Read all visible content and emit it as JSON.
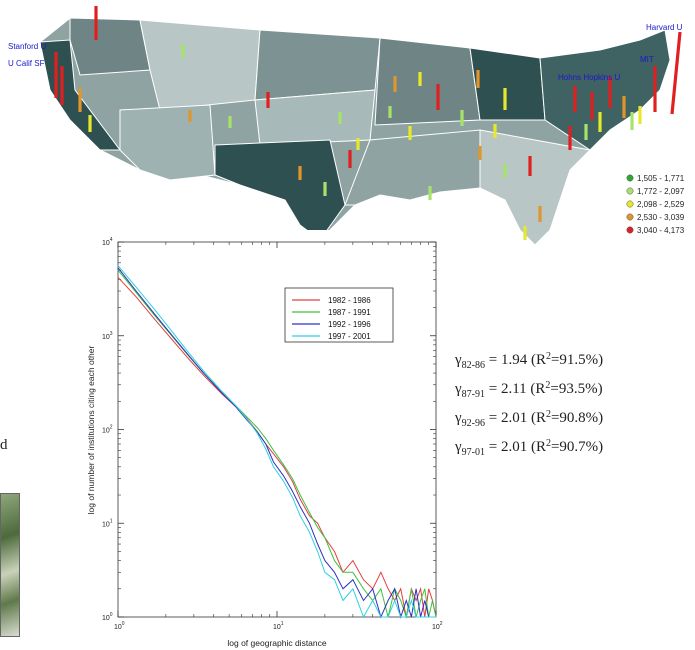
{
  "map": {
    "institution_labels": [
      "Stanford U",
      "U Calif SF",
      "Harvard U",
      "MIT",
      "Hohns Hopkins U"
    ],
    "legend": [
      {
        "label": "1,505 - 1,771",
        "color": "#2fa82f"
      },
      {
        "label": "1,772 - 2,097",
        "color": "#a6e36a"
      },
      {
        "label": "2,098 - 2,529",
        "color": "#e8e82a"
      },
      {
        "label": "2,530 - 3,039",
        "color": "#e0962a"
      },
      {
        "label": "3,040 - 4,173",
        "color": "#e02020"
      }
    ]
  },
  "chart_data": {
    "type": "line",
    "xlabel": "log of geographic distance",
    "ylabel": "log of number of institutions citing each other",
    "x_scale": "log",
    "y_scale": "log",
    "xlim": [
      1,
      100
    ],
    "ylim": [
      1,
      10000
    ],
    "x_ticks": [
      {
        "base": "10",
        "exp": "0"
      },
      {
        "base": "10",
        "exp": "1"
      },
      {
        "base": "10",
        "exp": "2"
      }
    ],
    "y_ticks": [
      {
        "base": "10",
        "exp": "0"
      },
      {
        "base": "10",
        "exp": "1"
      },
      {
        "base": "10",
        "exp": "2"
      },
      {
        "base": "10",
        "exp": "3"
      },
      {
        "base": "10",
        "exp": "4"
      }
    ],
    "legend_position": "top-right",
    "series": [
      {
        "name": "1982 - 1986",
        "color": "#e04040",
        "x": [
          1,
          1.3,
          1.7,
          2.2,
          2.8,
          3.5,
          4.5,
          5.5,
          6.5,
          7.5,
          8.5,
          9.5,
          11,
          12.5,
          14,
          16,
          18,
          20,
          23,
          26,
          30,
          35,
          40,
          45,
          50,
          55,
          60,
          65,
          70,
          75,
          80,
          85,
          90,
          95,
          100
        ],
        "y": [
          4200,
          2600,
          1500,
          900,
          560,
          370,
          240,
          175,
          130,
          95,
          70,
          55,
          40,
          28,
          18,
          12,
          10,
          7,
          5,
          3,
          4,
          2.5,
          2,
          3,
          2,
          1.5,
          2,
          1,
          2,
          1.5,
          2,
          1,
          2,
          1.5,
          1
        ]
      },
      {
        "name": "1987 - 1991",
        "color": "#40c040",
        "x": [
          1,
          1.3,
          1.7,
          2.2,
          2.8,
          3.5,
          4.5,
          5.5,
          6.5,
          7.5,
          8.5,
          9.5,
          11,
          12.5,
          14,
          16,
          18,
          20,
          23,
          26,
          30,
          35,
          40,
          45,
          50,
          55,
          60,
          65,
          70,
          75,
          80,
          85,
          90,
          95,
          100
        ],
        "y": [
          5000,
          2900,
          1650,
          980,
          600,
          390,
          250,
          180,
          135,
          105,
          80,
          60,
          42,
          30,
          20,
          13,
          9,
          7,
          4,
          3,
          3,
          2,
          1.5,
          2,
          1,
          2,
          1.5,
          1,
          2,
          1,
          1.5,
          2,
          1,
          1.5,
          1
        ]
      },
      {
        "name": "1992 - 1996",
        "color": "#3030c0",
        "x": [
          1,
          1.3,
          1.7,
          2.2,
          2.8,
          3.5,
          4.5,
          5.5,
          6.5,
          7.5,
          8.5,
          9.5,
          11,
          12.5,
          14,
          16,
          18,
          20,
          23,
          26,
          30,
          35,
          40,
          45,
          50,
          55,
          60,
          65,
          70,
          75,
          80,
          85,
          90,
          95,
          100
        ],
        "y": [
          5300,
          3000,
          1700,
          1000,
          610,
          390,
          245,
          175,
          125,
          95,
          70,
          45,
          32,
          22,
          15,
          10,
          6,
          4,
          3,
          2,
          2.5,
          1.5,
          2,
          1,
          1.5,
          2,
          1,
          1.5,
          1,
          2,
          1,
          1.5,
          1,
          1,
          1
        ]
      },
      {
        "name": "1997 - 2001",
        "color": "#30d0e0",
        "x": [
          1,
          1.3,
          1.7,
          2.2,
          2.8,
          3.5,
          4.5,
          5.5,
          6.5,
          7.5,
          8.5,
          9.5,
          11,
          12.5,
          14,
          16,
          18,
          20,
          23,
          26,
          30,
          35,
          40,
          45,
          50,
          55,
          60,
          65,
          70,
          75,
          80,
          85,
          90,
          95,
          100
        ],
        "y": [
          5600,
          3300,
          1900,
          1100,
          650,
          410,
          255,
          180,
          128,
          92,
          62,
          40,
          28,
          19,
          12,
          8,
          5,
          3,
          2.5,
          1.5,
          2,
          1,
          1.5,
          1,
          1,
          1.5,
          1,
          1,
          1.5,
          1,
          1,
          1,
          1,
          1,
          1
        ]
      }
    ]
  },
  "gamma": [
    {
      "sub": "82-86",
      "value": "1.94",
      "r2": "91.5%"
    },
    {
      "sub": "87-91",
      "value": "2.11",
      "r2": "93.5%"
    },
    {
      "sub": "92-96",
      "value": "2.01",
      "r2": "90.8%"
    },
    {
      "sub": "97-01",
      "value": "2.01",
      "r2": "90.7%"
    }
  ],
  "left_fragment_text": "d"
}
